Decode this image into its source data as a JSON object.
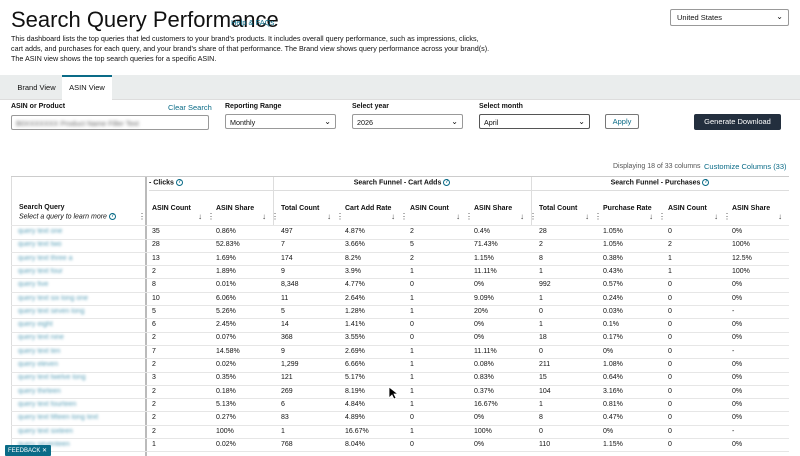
{
  "header": {
    "title": "Search Query Performance",
    "help_link": "Help & FAQs",
    "description": "This dashboard lists the top queries that led customers to your brand's products. It includes overall query performance, such as impressions, clicks, cart adds, and purchases for each query, and your brand's share of that performance. The Brand view shows query performance across your brand(s). The ASIN view shows the top search queries for a specific ASIN.",
    "country": "United States"
  },
  "tabs": {
    "brand": "Brand View",
    "asin": "ASIN View"
  },
  "filters": {
    "asin_label": "ASIN or Product",
    "asin_value": "B0XXXXXXX Product Name Filler Text",
    "clear_search": "Clear Search",
    "range_label": "Reporting Range",
    "range_value": "Monthly",
    "year_label": "Select year",
    "year_value": "2026",
    "month_label": "Select month",
    "month_value": "April",
    "apply": "Apply",
    "download": "Generate Download"
  },
  "table_meta": {
    "displaying": "Displaying 18 of 33 columns",
    "customize": "Customize Columns (33)"
  },
  "table": {
    "query_header": "Search Query",
    "query_subheader": "Select a query to learn more",
    "groups": {
      "clicks": "- Clicks",
      "cart_adds": "Search Funnel - Cart Adds",
      "purchases": "Search Funnel - Purchases"
    },
    "columns": {
      "c_asin_count": "ASIN Count",
      "c_asin_share": "ASIN Share",
      "a_total_count": "Total Count",
      "a_rate": "Cart Add Rate",
      "a_asin_count": "ASIN Count",
      "a_asin_share": "ASIN Share",
      "p_total_count": "Total Count",
      "p_rate": "Purchase Rate",
      "p_asin_count": "ASIN Count",
      "p_asin_share": "ASIN Share"
    },
    "rows": [
      {
        "q": "query text one",
        "v": [
          "35",
          "0.86%",
          "497",
          "4.87%",
          "2",
          "0.4%",
          "28",
          "1.05%",
          "0",
          "0%"
        ]
      },
      {
        "q": "query text two",
        "v": [
          "28",
          "52.83%",
          "7",
          "3.66%",
          "5",
          "71.43%",
          "2",
          "1.05%",
          "2",
          "100%"
        ]
      },
      {
        "q": "query text three a",
        "v": [
          "13",
          "1.69%",
          "174",
          "8.2%",
          "2",
          "1.15%",
          "8",
          "0.38%",
          "1",
          "12.5%"
        ]
      },
      {
        "q": "query text four",
        "v": [
          "2",
          "1.89%",
          "9",
          "3.9%",
          "1",
          "11.11%",
          "1",
          "0.43%",
          "1",
          "100%"
        ]
      },
      {
        "q": "query five",
        "v": [
          "8",
          "0.01%",
          "8,348",
          "4.77%",
          "0",
          "0%",
          "992",
          "0.57%",
          "0",
          "0%"
        ]
      },
      {
        "q": "query text six long one",
        "v": [
          "10",
          "6.06%",
          "11",
          "2.64%",
          "1",
          "9.09%",
          "1",
          "0.24%",
          "0",
          "0%"
        ]
      },
      {
        "q": "query text seven long",
        "v": [
          "5",
          "5.26%",
          "5",
          "1.28%",
          "1",
          "20%",
          "0",
          "0.03%",
          "0",
          "-"
        ]
      },
      {
        "q": "query eight",
        "v": [
          "6",
          "2.45%",
          "14",
          "1.41%",
          "0",
          "0%",
          "1",
          "0.1%",
          "0",
          "0%"
        ]
      },
      {
        "q": "query text nine",
        "v": [
          "2",
          "0.07%",
          "368",
          "3.55%",
          "0",
          "0%",
          "18",
          "0.17%",
          "0",
          "0%"
        ]
      },
      {
        "q": "query text ten",
        "v": [
          "7",
          "14.58%",
          "9",
          "2.69%",
          "1",
          "11.11%",
          "0",
          "0%",
          "0",
          "-"
        ]
      },
      {
        "q": "query eleven",
        "v": [
          "2",
          "0.02%",
          "1,299",
          "6.66%",
          "1",
          "0.08%",
          "211",
          "1.08%",
          "0",
          "0%"
        ]
      },
      {
        "q": "query text twelve long",
        "v": [
          "3",
          "0.35%",
          "121",
          "5.17%",
          "1",
          "0.83%",
          "15",
          "0.64%",
          "0",
          "0%"
        ]
      },
      {
        "q": "query thirteen",
        "v": [
          "2",
          "0.18%",
          "269",
          "8.19%",
          "1",
          "0.37%",
          "104",
          "3.16%",
          "0",
          "0%"
        ]
      },
      {
        "q": "query text fourteen",
        "v": [
          "2",
          "5.13%",
          "6",
          "4.84%",
          "1",
          "16.67%",
          "1",
          "0.81%",
          "0",
          "0%"
        ]
      },
      {
        "q": "query text fifteen long text",
        "v": [
          "2",
          "0.27%",
          "83",
          "4.89%",
          "0",
          "0%",
          "8",
          "0.47%",
          "0",
          "0%"
        ]
      },
      {
        "q": "query text sixteen",
        "v": [
          "2",
          "100%",
          "1",
          "16.67%",
          "1",
          "100%",
          "0",
          "0%",
          "0",
          "-"
        ]
      },
      {
        "q": "query seventeen",
        "v": [
          "1",
          "0.02%",
          "768",
          "8.04%",
          "0",
          "0%",
          "110",
          "1.15%",
          "0",
          "0%"
        ]
      }
    ]
  },
  "feedback": "FEEDBACK ✕"
}
